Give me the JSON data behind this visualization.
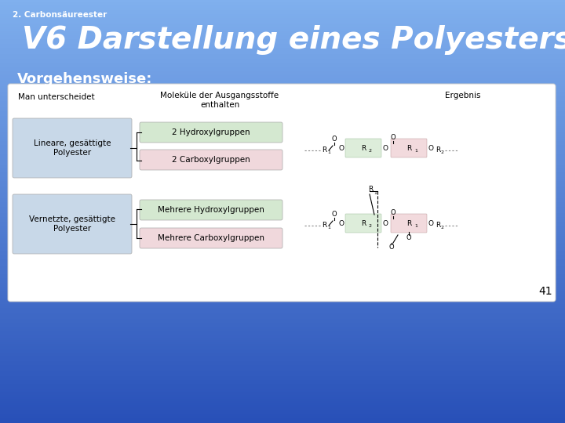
{
  "subtitle": "2. Carbonsäureester",
  "title": "V6 Darstellung eines Polyesters",
  "vorgehensweise": "Vorgehensweise:",
  "page_number": "41",
  "col1_header": "Man unterscheidet",
  "col2_header": "Moleküle der Ausgangsstoffe\nenthalten",
  "col3_header": "Ergebnis",
  "row1_label": "Lineare, gesättigte\nPolyester",
  "row2_label": "Vernetzte, gesättigte\nPolyester",
  "box1a": "2 Hydroxylgruppen",
  "box1b": "2 Carboxylgruppen",
  "box2a": "Mehrere Hydroxylgruppen",
  "box2b": "Mehrere Carboxylgruppen",
  "bg_top": "#7ab0e8",
  "bg_bottom": "#3060b0",
  "white_box": "#ffffff",
  "gray_box": "#c8d8e8",
  "green_box": "#d4e8d0",
  "pink_box": "#f0d8dc"
}
